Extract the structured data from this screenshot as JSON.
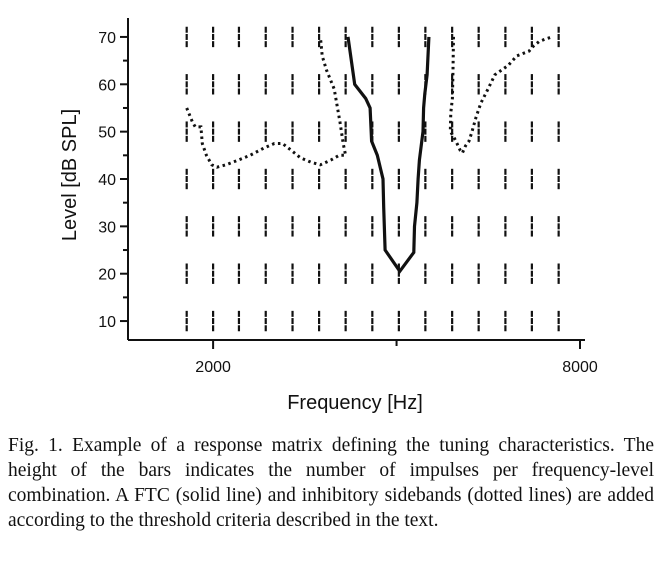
{
  "caption": "Fig. 1. Example of a response matrix defining the tuning characteristics. The height of the bars indicates the number of impulses per frequency-level combination. A FTC (solid line) and inhibitory sidebands (dotted lines) are added according to the threshold criteria described in the text.",
  "chart_data": {
    "type": "line",
    "xlabel": "Frequency [Hz]",
    "ylabel": "Level [dB SPL]",
    "xscale": "log",
    "xlim": [
      1450,
      8000
    ],
    "ylim": [
      6,
      74
    ],
    "x_ticks": [
      2000,
      8000
    ],
    "x_minor_ticks": [
      4000
    ],
    "y_ticks": [
      10,
      20,
      30,
      40,
      50,
      60,
      70
    ],
    "grid": false,
    "legend": "none",
    "matrix_columns_hz": [
      1810,
      2000,
      2205,
      2440,
      2700,
      2985,
      3300,
      3650,
      4035,
      4460,
      4935,
      5455,
      6035,
      6670,
      7380
    ],
    "matrix_levels": [
      10,
      20,
      30,
      40,
      50,
      60,
      70
    ],
    "series": [
      {
        "style": "solid",
        "points": [
          [
            3330,
            70
          ],
          [
            3415,
            60
          ],
          [
            3560,
            57
          ],
          [
            3620,
            55
          ],
          [
            3640,
            48
          ],
          [
            3720,
            45
          ],
          [
            3800,
            40
          ],
          [
            3810,
            34
          ],
          [
            3830,
            25
          ],
          [
            4050,
            20.5
          ],
          [
            4270,
            24.5
          ],
          [
            4280,
            30
          ],
          [
            4320,
            35
          ],
          [
            4340,
            40
          ],
          [
            4360,
            44
          ],
          [
            4400,
            48
          ],
          [
            4420,
            50
          ],
          [
            4430,
            55
          ],
          [
            4450,
            58
          ],
          [
            4490,
            62
          ],
          [
            4520,
            70
          ]
        ]
      },
      {
        "style": "dotted",
        "points": [
          [
            1810,
            55
          ],
          [
            1850,
            52
          ],
          [
            1870,
            51
          ],
          [
            1910,
            51
          ],
          [
            1920,
            47.5
          ],
          [
            1950,
            45
          ],
          [
            1990,
            43
          ],
          [
            2030,
            42.5
          ],
          [
            2100,
            43
          ],
          [
            2200,
            44
          ],
          [
            2300,
            45
          ],
          [
            2420,
            46.5
          ],
          [
            2520,
            47.5
          ],
          [
            2600,
            47.5
          ],
          [
            2690,
            46
          ],
          [
            2780,
            44.5
          ],
          [
            2900,
            43.5
          ],
          [
            3000,
            43
          ],
          [
            3120,
            44
          ],
          [
            3220,
            45
          ],
          [
            3300,
            45
          ],
          [
            3270,
            47.5
          ],
          [
            3230,
            52
          ],
          [
            3160,
            59
          ],
          [
            3070,
            63
          ],
          [
            3020,
            66
          ],
          [
            3000,
            70
          ]
        ]
      },
      {
        "style": "dotted",
        "points": [
          [
            4960,
            70
          ],
          [
            4950,
            63
          ],
          [
            4940,
            57
          ],
          [
            4910,
            54
          ],
          [
            4900,
            50
          ],
          [
            4960,
            49
          ],
          [
            5050,
            47
          ],
          [
            5090,
            46
          ],
          [
            5130,
            45.5
          ],
          [
            5190,
            47
          ],
          [
            5260,
            48
          ],
          [
            5320,
            50
          ],
          [
            5400,
            53
          ],
          [
            5500,
            56
          ],
          [
            5650,
            59
          ],
          [
            5800,
            62
          ],
          [
            6100,
            64
          ],
          [
            6300,
            66
          ],
          [
            6600,
            67
          ],
          [
            6700,
            68
          ],
          [
            6850,
            69
          ],
          [
            7000,
            69.5
          ],
          [
            7200,
            70
          ]
        ]
      }
    ]
  }
}
